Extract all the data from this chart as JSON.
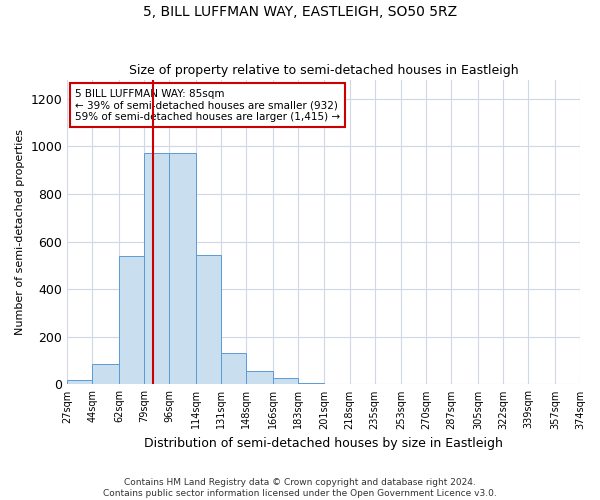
{
  "title1": "5, BILL LUFFMAN WAY, EASTLEIGH, SO50 5RZ",
  "title2": "Size of property relative to semi-detached houses in Eastleigh",
  "xlabel": "Distribution of semi-detached houses by size in Eastleigh",
  "ylabel": "Number of semi-detached properties",
  "footnote1": "Contains HM Land Registry data © Crown copyright and database right 2024.",
  "footnote2": "Contains public sector information licensed under the Open Government Licence v3.0.",
  "annotation_line1": "5 BILL LUFFMAN WAY: 85sqm",
  "annotation_line2": "← 39% of semi-detached houses are smaller (932)",
  "annotation_line3": "59% of semi-detached houses are larger (1,415) →",
  "property_size": 85,
  "bin_edges": [
    27,
    44,
    62,
    79,
    96,
    114,
    131,
    148,
    166,
    183,
    201,
    218,
    235,
    253,
    270,
    287,
    305,
    322,
    339,
    357,
    374
  ],
  "bar_heights": [
    20,
    85,
    540,
    970,
    970,
    545,
    130,
    55,
    25,
    5,
    2,
    1,
    0,
    0,
    0,
    0,
    0,
    0,
    0,
    0
  ],
  "bar_color": "#c9dff0",
  "bar_edge_color": "#5b9bd5",
  "vline_color": "#cc0000",
  "vline_x": 85,
  "box_color": "#cc0000",
  "grid_color": "#d0d8e8",
  "ylim": [
    0,
    1280
  ],
  "yticks": [
    0,
    200,
    400,
    600,
    800,
    1000,
    1200
  ],
  "tick_labels": [
    "27sqm",
    "44sqm",
    "62sqm",
    "79sqm",
    "96sqm",
    "114sqm",
    "131sqm",
    "148sqm",
    "166sqm",
    "183sqm",
    "201sqm",
    "218sqm",
    "235sqm",
    "253sqm",
    "270sqm",
    "287sqm",
    "305sqm",
    "322sqm",
    "339sqm",
    "357sqm",
    "374sqm"
  ],
  "title1_fontsize": 10,
  "title2_fontsize": 9,
  "ylabel_fontsize": 8,
  "xlabel_fontsize": 9
}
